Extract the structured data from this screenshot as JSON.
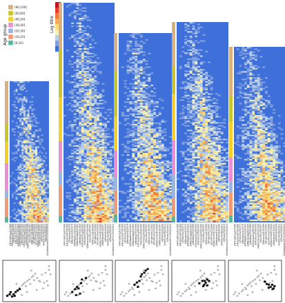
{
  "chart_data": {
    "type": "heatmap",
    "title": "",
    "age_legend": {
      "title": "Age group",
      "entries": [
        {
          "label": "(60,100]",
          "color": "#d9b07e"
        },
        {
          "label": "(50,60]",
          "color": "#c8c630"
        },
        {
          "label": "(40,50]",
          "color": "#f2cf2a"
        },
        {
          "label": "(30,40]",
          "color": "#ea8fd4"
        },
        {
          "label": "(20,30]",
          "color": "#9bb5e3"
        },
        {
          "label": "(10,20]",
          "color": "#f09b73"
        },
        {
          "label": "[0,10]",
          "color": "#55b79d"
        }
      ]
    },
    "titre_legend": {
      "title": "Log titre",
      "levels": [
        8,
        7,
        6,
        5,
        4,
        3,
        2,
        1,
        0
      ],
      "colors": [
        "#c1121f",
        "#e83b2b",
        "#f37a3a",
        "#f8ad52",
        "#fbdc7d",
        "#f3f0b8",
        "#b8cde8",
        "#7f9fdf",
        "#3f6fd9"
      ]
    },
    "panels": [
      {
        "id": 1,
        "age_strip": [
          "[0,10]",
          "(10,20]",
          "(20,30]",
          "(30,40]",
          "(40,50]",
          "(50,60]",
          "(60,100]"
        ],
        "row_share": [
          0.04,
          0.13,
          0.05,
          0.2,
          0.15,
          0.13,
          0.3
        ]
      },
      {
        "id": 2,
        "age_strip": [
          "[0,10]",
          "(10,20]",
          "(20,30]",
          "(30,40]",
          "(40,50]",
          "(50,60]",
          "(60,100]"
        ],
        "row_share": [
          0.03,
          0.14,
          0.06,
          0.14,
          0.2,
          0.22,
          0.21
        ]
      },
      {
        "id": 3,
        "age_strip": [
          "[0,10]",
          "(10,20]",
          "(20,30]",
          "(30,40]",
          "(40,50]",
          "(50,60]",
          "(60,100]"
        ],
        "row_share": [
          0.04,
          0.13,
          0.07,
          0.14,
          0.18,
          0.24,
          0.2
        ]
      },
      {
        "id": 4,
        "age_strip": [
          "[0,10]",
          "(10,20]",
          "(20,30]",
          "(30,40]",
          "(40,50]",
          "(50,60]",
          "(60,100]"
        ],
        "row_share": [
          0.03,
          0.09,
          0.12,
          0.17,
          0.23,
          0.14,
          0.22
        ]
      },
      {
        "id": 5,
        "age_strip": [
          "[0,10]",
          "(10,20]",
          "(20,30]",
          "(30,40]",
          "(40,50]",
          "(50,60]",
          "(60,100]"
        ],
        "row_share": [
          0.04,
          0.13,
          0.06,
          0.14,
          0.2,
          0.15,
          0.28
        ]
      }
    ],
    "strain_labels": [
      "A/HongKong/1/1968",
      "A/England/878/1969",
      "A/Victoria/3/1975",
      "A/Bangkok/1/1979",
      "A/Philippines/2/1982",
      "A/Mississippi/1/1985",
      "A/Beijing/353/1989",
      "A/Shangdong/9/1993",
      "A/Wuhan/359/1995",
      "A/Nanchang/933/1995",
      "A/Sydney/5/1997",
      "A/Moscow/10/1999",
      "A/Fujian/411/2002",
      "A/California/7/2004",
      "A/Wisconsin/67/2005",
      "A/Brisbane/10/2007",
      "A/Perth/16/2009",
      "A/Victoria/361/2011",
      "A/Texas/50/2012",
      "A/Switzerland/9715293/2013"
    ],
    "antigenic_maps": {
      "grey_points": [
        [
          0.07,
          0.86
        ],
        [
          0.1,
          0.8
        ],
        [
          0.14,
          0.9
        ],
        [
          0.18,
          0.84
        ],
        [
          0.23,
          0.78
        ],
        [
          0.26,
          0.74
        ],
        [
          0.3,
          0.68
        ],
        [
          0.32,
          0.72
        ],
        [
          0.35,
          0.62
        ],
        [
          0.38,
          0.58
        ],
        [
          0.41,
          0.54
        ],
        [
          0.43,
          0.64
        ],
        [
          0.46,
          0.5
        ],
        [
          0.5,
          0.46
        ],
        [
          0.52,
          0.58
        ],
        [
          0.55,
          0.4
        ],
        [
          0.58,
          0.36
        ],
        [
          0.6,
          0.48
        ],
        [
          0.62,
          0.3
        ],
        [
          0.66,
          0.42
        ],
        [
          0.7,
          0.5
        ],
        [
          0.72,
          0.52
        ],
        [
          0.76,
          0.33
        ],
        [
          0.8,
          0.55
        ],
        [
          0.83,
          0.28
        ],
        [
          0.86,
          0.5
        ],
        [
          0.9,
          0.2
        ],
        [
          0.93,
          0.32
        ],
        [
          0.35,
          0.88
        ],
        [
          0.45,
          0.8
        ],
        [
          0.65,
          0.74
        ],
        [
          0.78,
          0.7
        ],
        [
          0.88,
          0.62
        ],
        [
          0.24,
          0.58
        ],
        [
          0.54,
          0.22
        ],
        [
          0.9,
          0.1
        ]
      ],
      "highlighted": [
        [
          [
            0.05,
            0.9
          ],
          [
            0.1,
            0.86
          ],
          [
            0.15,
            0.92
          ],
          [
            0.18,
            0.86
          ],
          [
            0.22,
            0.8
          ],
          [
            0.26,
            0.76
          ],
          [
            0.3,
            0.72
          ],
          [
            0.2,
            0.9
          ],
          [
            0.12,
            0.8
          ]
        ],
        [
          [
            0.22,
            0.8
          ],
          [
            0.28,
            0.72
          ],
          [
            0.32,
            0.66
          ],
          [
            0.35,
            0.7
          ],
          [
            0.4,
            0.56
          ],
          [
            0.42,
            0.46
          ],
          [
            0.5,
            0.42
          ],
          [
            0.3,
            0.88
          ],
          [
            0.38,
            0.84
          ]
        ],
        [
          [
            0.35,
            0.6
          ],
          [
            0.4,
            0.54
          ],
          [
            0.45,
            0.5
          ],
          [
            0.48,
            0.38
          ],
          [
            0.5,
            0.32
          ],
          [
            0.55,
            0.28
          ],
          [
            0.58,
            0.22
          ],
          [
            0.62,
            0.18
          ],
          [
            0.42,
            0.66
          ]
        ],
        [
          [
            0.52,
            0.56
          ],
          [
            0.58,
            0.5
          ],
          [
            0.62,
            0.6
          ],
          [
            0.65,
            0.55
          ],
          [
            0.68,
            0.62
          ],
          [
            0.72,
            0.5
          ],
          [
            0.68,
            0.46
          ],
          [
            0.6,
            0.64
          ],
          [
            0.63,
            0.5
          ]
        ],
        [
          [
            0.7,
            0.52
          ],
          [
            0.74,
            0.58
          ],
          [
            0.78,
            0.6
          ],
          [
            0.82,
            0.66
          ],
          [
            0.85,
            0.6
          ],
          [
            0.88,
            0.7
          ],
          [
            0.9,
            0.64
          ],
          [
            0.78,
            0.68
          ],
          [
            0.86,
            0.72
          ]
        ]
      ]
    }
  }
}
